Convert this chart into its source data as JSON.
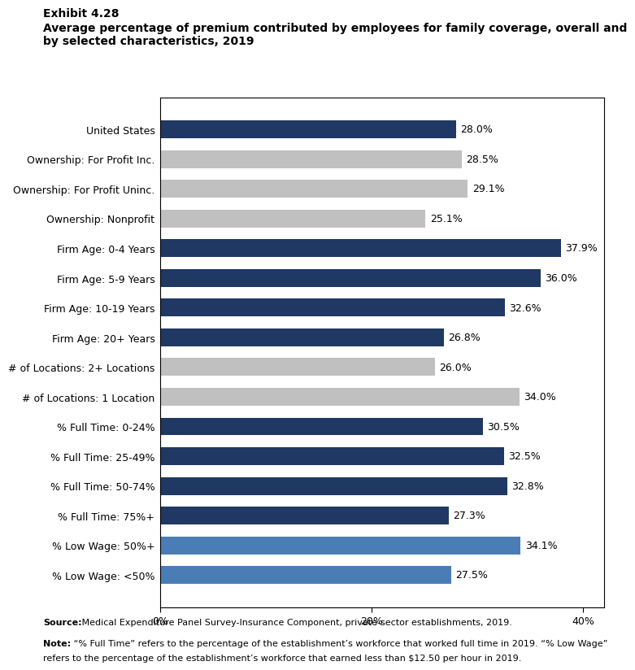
{
  "title_line1": "Exhibit 4.28",
  "title_line2": "Average percentage of premium contributed by employees for family coverage, overall and\nby selected characteristics, 2019",
  "categories": [
    "United States",
    "Ownership: For Profit Inc.",
    "Ownership: For Profit Uninc.",
    "Ownership: Nonprofit",
    "Firm Age: 0-4 Years",
    "Firm Age: 5-9 Years",
    "Firm Age: 10-19 Years",
    "Firm Age: 20+ Years",
    "# of Locations: 2+ Locations",
    "# of Locations: 1 Location",
    "% Full Time: 0-24%",
    "% Full Time: 25-49%",
    "% Full Time: 50-74%",
    "% Full Time: 75%+",
    "% Low Wage: 50%+",
    "% Low Wage: <50%"
  ],
  "values": [
    28.0,
    28.5,
    29.1,
    25.1,
    37.9,
    36.0,
    32.6,
    26.8,
    26.0,
    34.0,
    30.5,
    32.5,
    32.8,
    27.3,
    34.1,
    27.5
  ],
  "colors": [
    "#1F3864",
    "#C0C0C0",
    "#C0C0C0",
    "#C0C0C0",
    "#1F3864",
    "#1F3864",
    "#1F3864",
    "#1F3864",
    "#C0C0C0",
    "#C0C0C0",
    "#1F3864",
    "#1F3864",
    "#1F3864",
    "#1F3864",
    "#4A7DB5",
    "#4A7DB5"
  ],
  "xlim": [
    0,
    42
  ],
  "xticks": [
    0,
    20,
    40
  ],
  "xticklabels": [
    "0%",
    "20%",
    "40%"
  ],
  "source_bold": "Source:",
  "source_rest": " Medical Expenditure Panel Survey-Insurance Component, private-sector establishments, 2019.",
  "note_bold": "Note:",
  "note_rest": " “% Full Time” refers to the percentage of the establishment’s workforce that worked full time in 2019. “% Low Wage” refers to the percentage of the establishment’s workforce that earned less than $12.50 per hour in 2019.",
  "label_fontsize": 9,
  "tick_fontsize": 9,
  "bar_height": 0.6
}
